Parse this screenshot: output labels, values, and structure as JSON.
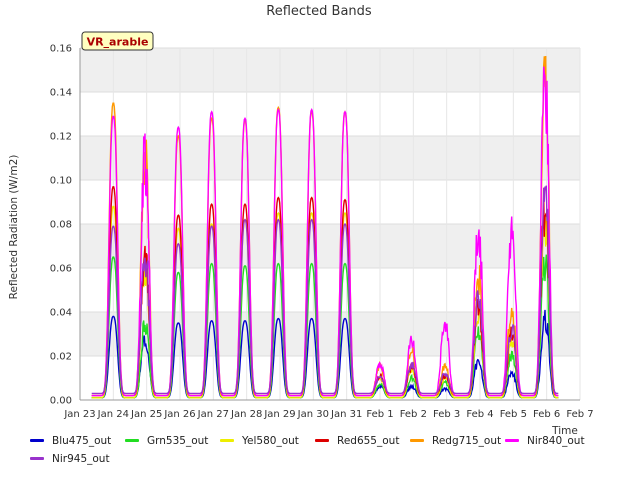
{
  "chart_data": {
    "type": "line",
    "title": "Reflected Bands",
    "xlabel": "Time",
    "ylabel": "Reflected Radiation (W/m2)",
    "ylim": [
      0,
      0.16
    ],
    "xlim": [
      0,
      15
    ],
    "yticks": [
      "0.00",
      "0.02",
      "0.04",
      "0.06",
      "0.08",
      "0.10",
      "0.12",
      "0.14",
      "0.16"
    ],
    "xticks": [
      "Jan 23",
      "Jan 24",
      "Jan 25",
      "Jan 26",
      "Jan 27",
      "Jan 28",
      "Jan 29",
      "Jan 30",
      "Jan 31",
      "Feb 1",
      "Feb 2",
      "Feb 3",
      "Feb 4",
      "Feb 5",
      "Feb 6",
      "Feb 7"
    ],
    "grid": true,
    "legend_position": "bottom",
    "annotation": "VR_arable",
    "day_peak_x": [
      1.0,
      1.95,
      2.95,
      3.95,
      4.95,
      5.95,
      6.95,
      7.95,
      9.0,
      9.95,
      10.95,
      11.95,
      12.95,
      13.95
    ],
    "series": [
      {
        "name": "Blu475_out",
        "color": "#0000cc",
        "baseline": 0.001,
        "peaks": [
          0.038,
          0.028,
          0.035,
          0.036,
          0.036,
          0.037,
          0.037,
          0.037,
          0.006,
          0.006,
          0.005,
          0.017,
          0.012,
          0.036
        ]
      },
      {
        "name": "Grn535_out",
        "color": "#22dd22",
        "baseline": 0.001,
        "peaks": [
          0.065,
          0.033,
          0.058,
          0.062,
          0.061,
          0.062,
          0.062,
          0.062,
          0.007,
          0.01,
          0.008,
          0.03,
          0.02,
          0.061
        ]
      },
      {
        "name": "Yel580_out",
        "color": "#eeee00",
        "baseline": 0.001,
        "peaks": [
          0.088,
          0.058,
          0.078,
          0.08,
          0.082,
          0.085,
          0.085,
          0.085,
          0.01,
          0.014,
          0.01,
          0.04,
          0.028,
          0.082
        ]
      },
      {
        "name": "Red655_out",
        "color": "#dd0000",
        "baseline": 0.002,
        "peaks": [
          0.097,
          0.065,
          0.084,
          0.089,
          0.089,
          0.092,
          0.092,
          0.091,
          0.011,
          0.015,
          0.011,
          0.042,
          0.03,
          0.086
        ]
      },
      {
        "name": "Redg715_out",
        "color": "#ff9900",
        "baseline": 0.002,
        "peaks": [
          0.135,
          0.109,
          0.12,
          0.128,
          0.127,
          0.133,
          0.131,
          0.131,
          0.015,
          0.022,
          0.015,
          0.055,
          0.04,
          0.141
        ]
      },
      {
        "name": "Nir840_out",
        "color": "#ff00ff",
        "baseline": 0.002,
        "peaks": [
          0.129,
          0.108,
          0.124,
          0.131,
          0.128,
          0.132,
          0.132,
          0.131,
          0.016,
          0.026,
          0.034,
          0.074,
          0.074,
          0.14
        ]
      },
      {
        "name": "Nir945_out",
        "color": "#9933cc",
        "baseline": 0.003,
        "peaks": [
          0.079,
          0.065,
          0.071,
          0.079,
          0.082,
          0.082,
          0.082,
          0.08,
          0.01,
          0.016,
          0.012,
          0.045,
          0.032,
          0.089
        ]
      }
    ]
  }
}
